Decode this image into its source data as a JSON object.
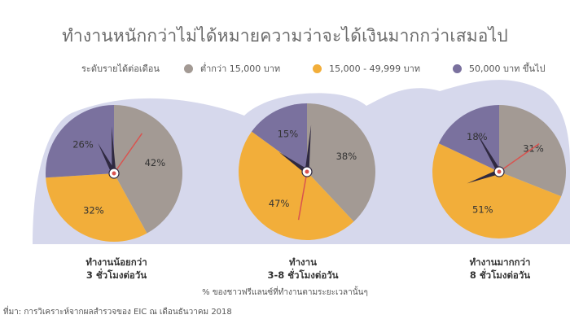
{
  "title": "ทำงานหนักกว่าไม่ได้หมายความว่าจะได้เงินมากกว่าเสมอไป",
  "legend": {
    "label": "ระดับรายได้ต่อเดือน",
    "items": [
      {
        "name": "ต่ำกว่า 15,000 บาท",
        "color": "#a39a94"
      },
      {
        "name": "15,000 - 49,999 บาท",
        "color": "#f2ae3a"
      },
      {
        "name": "50,000 บาท ขึ้นไป",
        "color": "#7a719e"
      }
    ]
  },
  "chart_data": {
    "type": "pie",
    "series_names": [
      "ต่ำกว่า 15,000 บาท",
      "15,000 - 49,999 บาท",
      "50,000 บาท ขึ้นไป"
    ],
    "colors": [
      "#a39a94",
      "#f2ae3a",
      "#7a719e"
    ],
    "legend_position": "top",
    "pies": [
      {
        "category_line1": "ทำงานน้อยกว่า",
        "category_line2": "3 ชั่วโมงต่อวัน",
        "values": [
          42,
          32,
          26
        ],
        "labels": [
          "42%",
          "32%",
          "26%"
        ]
      },
      {
        "category_line1": "ทำงาน",
        "category_line2": "3-8 ชั่วโมงต่อวัน",
        "values": [
          38,
          47,
          15
        ],
        "labels": [
          "38%",
          "47%",
          "15%"
        ]
      },
      {
        "category_line1": "ทำงานมากกว่า",
        "category_line2": "8 ชั่วโมงต่อวัน",
        "values": [
          31,
          51,
          18
        ],
        "labels": [
          "31%",
          "51%",
          "18%"
        ]
      }
    ]
  },
  "note": "% ของชาวฟรีแลนซ์ที่ทำงานตามระยะเวลานั้นๆ",
  "source": "ที่มา: การวิเคราะห์จากผลสำรวจของ EIC ณ เดือนธันวาคม 2018"
}
